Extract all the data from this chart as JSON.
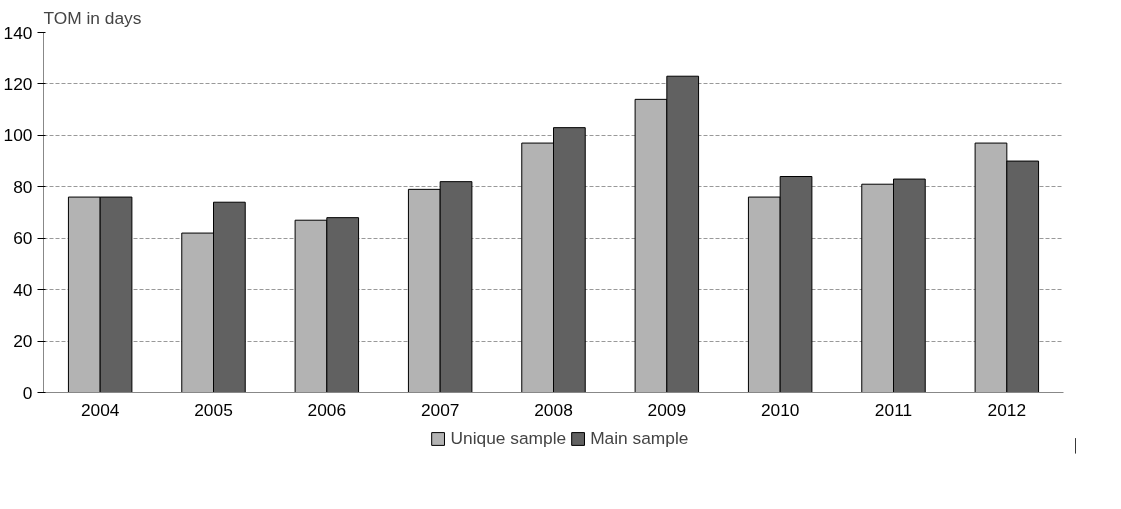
{
  "chart_data": {
    "type": "bar",
    "ylabel": "TOM in days",
    "categories": [
      "2004",
      "2005",
      "2006",
      "2007",
      "2008",
      "2009",
      "2010",
      "2011",
      "2012"
    ],
    "series": [
      {
        "name": "Unique sample",
        "color": "#b3b3b3",
        "values": [
          76,
          62,
          67,
          79,
          97,
          114,
          76,
          81,
          97
        ]
      },
      {
        "name": "Main sample",
        "color": "#616161",
        "values": [
          76,
          74,
          68,
          82,
          103,
          123,
          84,
          83,
          90
        ]
      }
    ],
    "ylim": [
      0,
      140
    ],
    "yticks": [
      0,
      20,
      40,
      60,
      80,
      100,
      120,
      140
    ],
    "grid": "y",
    "legend": "bottom"
  }
}
